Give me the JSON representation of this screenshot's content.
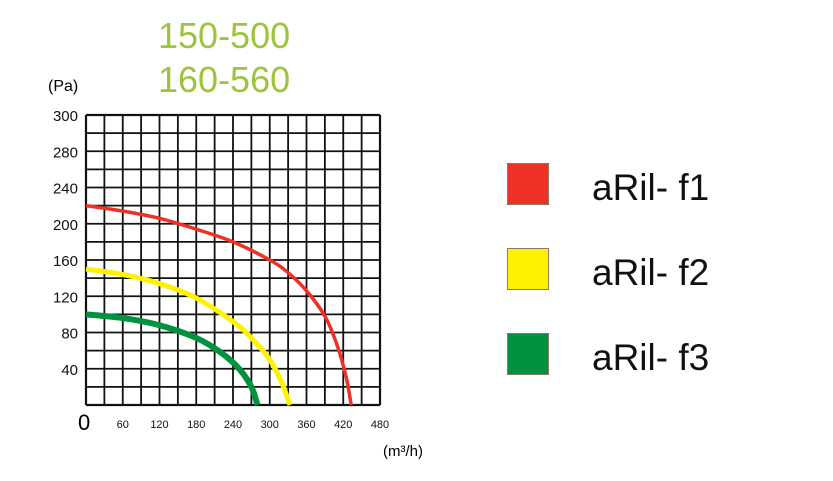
{
  "header": {
    "line1": "150-500",
    "line2": "160-560"
  },
  "chart_data": {
    "type": "line",
    "ylabel": "(Pa)",
    "xlabel": "(m³/h)",
    "x_origin_label": "0",
    "xlim": [
      0,
      480
    ],
    "x_ticks": [
      60,
      120,
      180,
      240,
      300,
      360,
      420,
      480
    ],
    "y_ticks": [
      40,
      80,
      120,
      160,
      200,
      240,
      280,
      300
    ],
    "grid": true,
    "legend_position": "right",
    "series": [
      {
        "name": "aRil- f1",
        "color": "#ee3124",
        "points": [
          [
            0,
            220
          ],
          [
            60,
            214
          ],
          [
            120,
            206
          ],
          [
            180,
            194
          ],
          [
            240,
            180
          ],
          [
            300,
            160
          ],
          [
            330,
            146
          ],
          [
            360,
            126
          ],
          [
            390,
            98
          ],
          [
            410,
            66
          ],
          [
            425,
            30
          ],
          [
            433,
            0
          ]
        ]
      },
      {
        "name": "aRil- f2",
        "color": "#fff200",
        "points": [
          [
            0,
            150
          ],
          [
            60,
            144
          ],
          [
            120,
            134
          ],
          [
            180,
            118
          ],
          [
            240,
            92
          ],
          [
            270,
            74
          ],
          [
            300,
            50
          ],
          [
            320,
            24
          ],
          [
            333,
            0
          ]
        ]
      },
      {
        "name": "aRil- f3",
        "color": "#00923f",
        "points": [
          [
            0,
            100
          ],
          [
            60,
            96
          ],
          [
            120,
            88
          ],
          [
            180,
            74
          ],
          [
            220,
            58
          ],
          [
            250,
            40
          ],
          [
            270,
            20
          ],
          [
            280,
            0
          ]
        ]
      }
    ]
  }
}
